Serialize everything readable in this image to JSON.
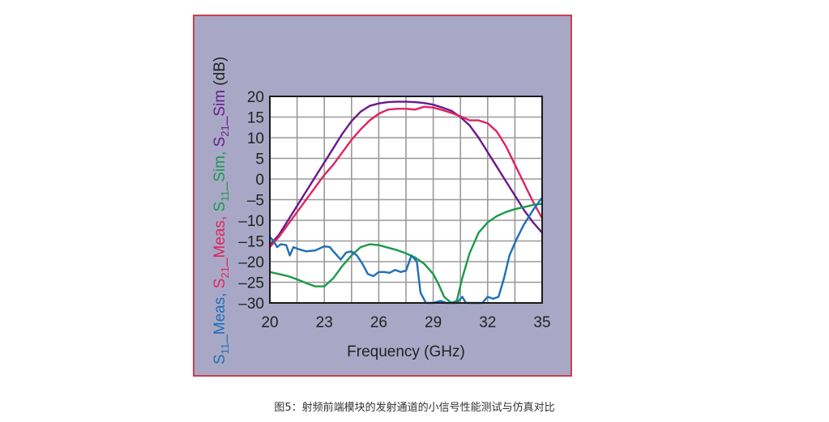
{
  "figure": {
    "caption": "图5：射频前端模块的发射通道的小信号性能测试与仿真对比",
    "frame_bg": "#a8a8c6",
    "frame_border": "#c8404e"
  },
  "chart_data": {
    "type": "line",
    "title": "",
    "xlabel": "Frequency (GHz)",
    "ylabel": "S11_Meas, S21_Meas, S11_Sim, S21_Sim (dB)",
    "ylabel_parts": [
      {
        "base": "S",
        "sub": "11",
        "suffix": "_Meas, ",
        "color": "#1f6fb5"
      },
      {
        "base": "S",
        "sub": "21",
        "suffix": "_Meas, ",
        "color": "#e0245e"
      },
      {
        "base": "S",
        "sub": "11",
        "suffix": "_Sim, ",
        "color": "#1a9a4a"
      },
      {
        "base": "S",
        "sub": "21",
        "suffix": "_Sim ",
        "color": "#6a1a8a"
      },
      {
        "base": "(dB)",
        "sub": "",
        "suffix": "",
        "color": "#222222"
      }
    ],
    "xlim": [
      20,
      35
    ],
    "ylim": [
      -30,
      20
    ],
    "xticks": [
      20,
      23,
      26,
      29,
      32,
      35
    ],
    "yticks": [
      20,
      15,
      10,
      5,
      0,
      -5,
      -10,
      -15,
      -20,
      -25,
      -30
    ],
    "ytick_labels": [
      "20",
      "15",
      "10",
      "5",
      "0",
      "–5",
      "–10",
      "–15",
      "–20",
      "–25",
      "–30"
    ],
    "x_grid_step": 1.5,
    "y_grid_step": 5,
    "grid": true,
    "legend": "none (colored y-axis label)",
    "series": [
      {
        "name": "S21_Sim",
        "color": "#6a1a8a",
        "x": [
          20,
          20.5,
          21,
          21.5,
          22,
          22.5,
          23,
          23.5,
          24,
          24.5,
          25,
          25.5,
          26,
          26.5,
          27,
          27.5,
          28,
          28.5,
          29,
          29.5,
          30,
          30.5,
          31,
          31.5,
          32,
          32.5,
          33,
          33.5,
          34,
          34.5,
          35
        ],
        "y": [
          -16,
          -13.5,
          -10,
          -6.5,
          -3,
          0.5,
          4,
          7.5,
          11,
          14,
          16.3,
          17.7,
          18.3,
          18.6,
          18.7,
          18.7,
          18.6,
          18.4,
          18,
          17.3,
          16.5,
          15,
          13,
          10,
          6.5,
          3,
          -0.5,
          -4,
          -7.5,
          -10.5,
          -13
        ]
      },
      {
        "name": "S21_Meas",
        "color": "#e0245e",
        "x": [
          20,
          20.5,
          21,
          21.5,
          22,
          22.5,
          23,
          23.5,
          24,
          24.5,
          25,
          25.5,
          26,
          26.5,
          27,
          27.5,
          28,
          28.5,
          29,
          29.5,
          30,
          30.5,
          31,
          31.5,
          32,
          32.5,
          33,
          33.5,
          34,
          34.5,
          35
        ],
        "y": [
          -16.5,
          -14,
          -11,
          -8,
          -5,
          -2,
          1,
          3.5,
          6.5,
          9.5,
          12,
          14.2,
          15.8,
          16.8,
          17,
          17,
          16.8,
          17.5,
          17.3,
          16.7,
          16,
          15.2,
          14.2,
          14.2,
          13.5,
          11.5,
          8,
          3.5,
          -1,
          -5.5,
          -9.5
        ]
      },
      {
        "name": "S11_Sim",
        "color": "#1a9a4a",
        "x": [
          20,
          20.5,
          21,
          21.5,
          22,
          22.5,
          23,
          23.5,
          24,
          24.5,
          25,
          25.5,
          26,
          26.5,
          27,
          27.5,
          28,
          28.5,
          29,
          29.3,
          29.6,
          30,
          30.3,
          30.6,
          31,
          31.5,
          32,
          32.5,
          33,
          33.5,
          34,
          34.5,
          35
        ],
        "y": [
          -22.5,
          -23,
          -23.5,
          -24.3,
          -25.2,
          -26,
          -26,
          -24,
          -21,
          -18.5,
          -16.5,
          -15.8,
          -16,
          -16.6,
          -17.2,
          -18,
          -19,
          -20.5,
          -23,
          -25.5,
          -28.5,
          -30,
          -29.5,
          -24,
          -18,
          -13,
          -10.5,
          -9,
          -8,
          -7.3,
          -6.8,
          -6.3,
          -6
        ]
      },
      {
        "name": "S11_Meas",
        "color": "#1f6fb5",
        "x": [
          20,
          20.2,
          20.4,
          20.6,
          20.9,
          21.1,
          21.3,
          21.6,
          22,
          22.5,
          23,
          23.3,
          23.6,
          23.9,
          24.2,
          24.5,
          24.8,
          25.1,
          25.4,
          25.7,
          26,
          26.3,
          26.6,
          26.9,
          27.2,
          27.5,
          27.8,
          28.1,
          28.3,
          28.6,
          28.8,
          29,
          29.4,
          29.7,
          30,
          30.3,
          30.6,
          30.8,
          31,
          31.3,
          31.7,
          32,
          32.3,
          32.6,
          32.9,
          33.2,
          33.6,
          34,
          34.5,
          35
        ],
        "y": [
          -14,
          -15,
          -16.5,
          -15.8,
          -16,
          -18.5,
          -16.5,
          -17,
          -17.5,
          -17.3,
          -16.3,
          -16.5,
          -18,
          -19.5,
          -17.8,
          -17.5,
          -18.5,
          -20.5,
          -23,
          -23.5,
          -22.5,
          -22.5,
          -22.7,
          -22,
          -22.5,
          -22.2,
          -18.5,
          -20,
          -27.5,
          -30,
          -30,
          -30,
          -29.5,
          -30,
          -30,
          -30,
          -28.5,
          -30,
          -30,
          -30,
          -30,
          -28.5,
          -29,
          -28.5,
          -24,
          -18.5,
          -14.5,
          -11,
          -7.5,
          -4.5
        ]
      }
    ]
  }
}
